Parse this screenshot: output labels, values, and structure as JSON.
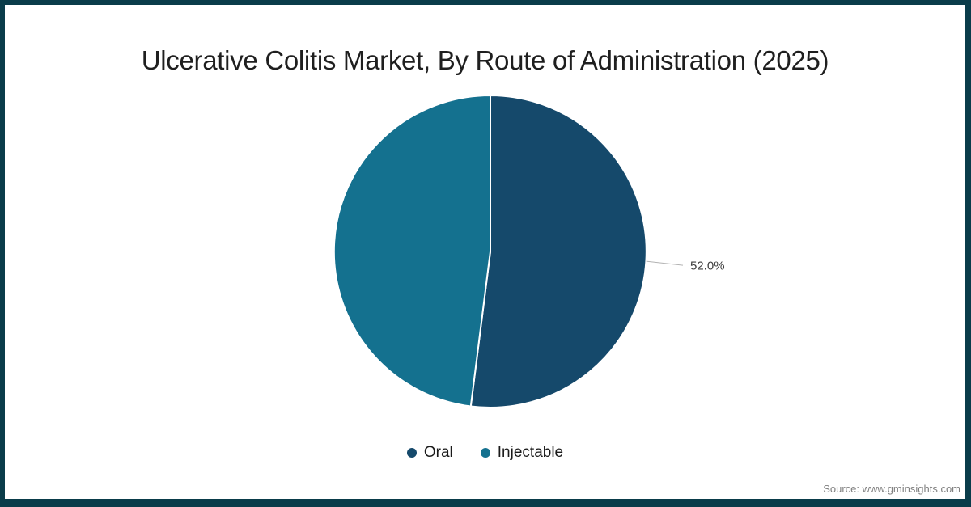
{
  "page": {
    "title": "Ulcerative Colitis Market, By Route of Administration (2025)",
    "source": "Source: www.gminsights.com"
  },
  "colors": {
    "frame": "#0a3c4a",
    "title_text": "#1f1f1f",
    "legend_text": "#1a1a1a",
    "leader_line": "#b3b3b3",
    "pct_label_text": "#3f3f3f",
    "source_text": "#808080",
    "oral_slice": "#15496b",
    "injectable_slice": "#14718f"
  },
  "chart_data": {
    "type": "pie",
    "title": "Ulcerative Colitis Market, By Route of Administration (2025)",
    "start_angle": "top",
    "direction": "clockwise",
    "legend_position": "bottom",
    "slices": [
      {
        "name": "Oral",
        "value": 52.0,
        "label": "52.0%",
        "color": "#15496b"
      },
      {
        "name": "Injectable",
        "value": 48.0,
        "label": "",
        "color": "#14718f"
      }
    ]
  }
}
